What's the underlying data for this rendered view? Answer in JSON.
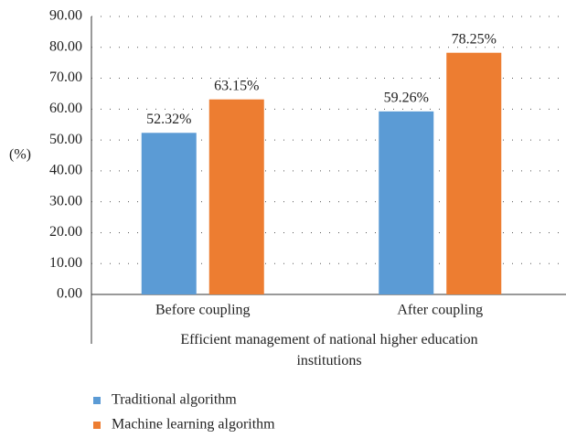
{
  "chart_data": {
    "type": "bar",
    "xlabel": "Efficient management of national higher education institutions",
    "ylabel": "(%)",
    "categories": [
      "Before coupling",
      "After coupling"
    ],
    "series": [
      {
        "name": "Traditional algorithm",
        "color": "#5b9bd5",
        "values": [
          52.32,
          59.26
        ],
        "value_labels": [
          "52.32%",
          "59.26%"
        ]
      },
      {
        "name": "Machine learning algorithm",
        "color": "#ed7d31",
        "values": [
          63.15,
          78.25
        ],
        "value_labels": [
          "63.15%",
          "78.25%"
        ]
      }
    ],
    "ylim": [
      0,
      90
    ],
    "yticks": [
      {
        "value": 0,
        "label": "0.00"
      },
      {
        "value": 10,
        "label": "10.00"
      },
      {
        "value": 20,
        "label": "20.00"
      },
      {
        "value": 30,
        "label": "30.00"
      },
      {
        "value": 40,
        "label": "40.00"
      },
      {
        "value": 50,
        "label": "50.00"
      },
      {
        "value": 60,
        "label": "60.00"
      },
      {
        "value": 70,
        "label": "70.00"
      },
      {
        "value": 80,
        "label": "80.00"
      },
      {
        "value": 90,
        "label": "90.00"
      }
    ],
    "grid": true,
    "legend": "bottom"
  }
}
